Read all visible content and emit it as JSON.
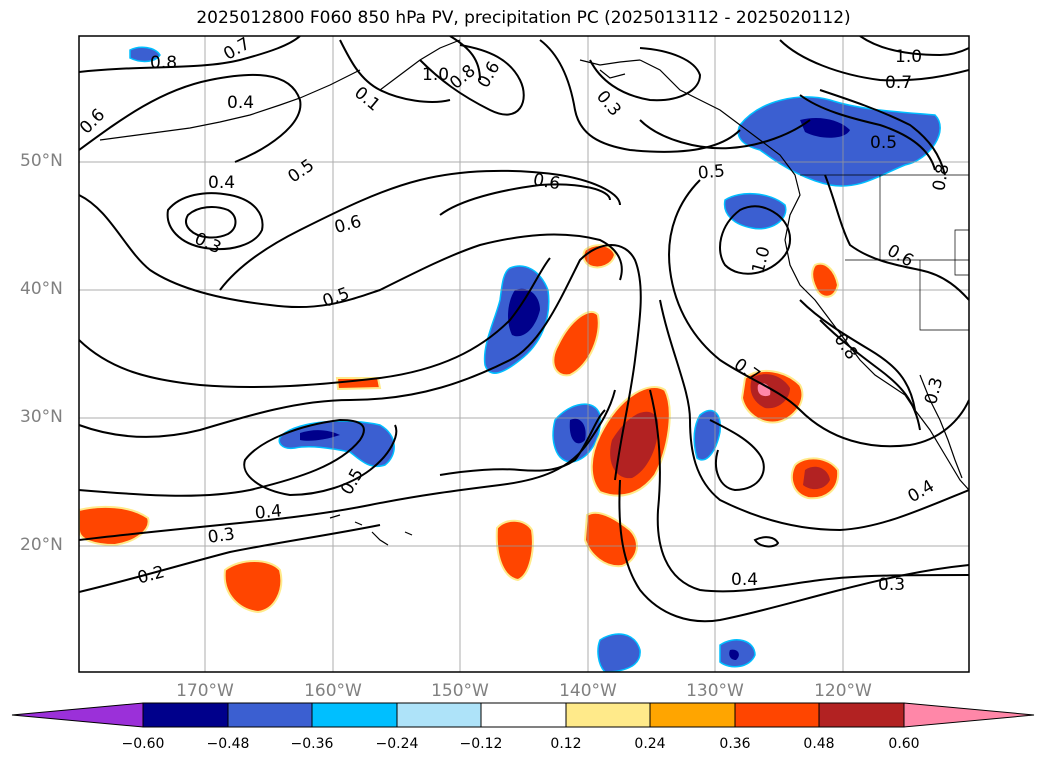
{
  "title": "2025012800 F060 850 hPa PV, precipitation PC (2025013112 - 2025020112)",
  "lat_labels": [
    "50°N",
    "40°N",
    "30°N",
    "20°N"
  ],
  "lon_labels": [
    "170°W",
    "160°W",
    "150°W",
    "140°W",
    "130°W",
    "120°W"
  ],
  "colorbar": {
    "ticks": [
      "−0.60",
      "−0.48",
      "−0.36",
      "−0.24",
      "−0.12",
      "0.12",
      "0.24",
      "0.36",
      "0.48",
      "0.60"
    ],
    "colors": [
      "#9b30d9",
      "#00008b",
      "#3b5fd1",
      "#00bfff",
      "#aee3f9",
      "#ffffff",
      "#ffea8a",
      "#ffa500",
      "#ff4500",
      "#b22222",
      "#ff87a8"
    ]
  },
  "contour_labels": [
    {
      "text": "0.8"
    },
    {
      "text": "0.7"
    },
    {
      "text": "0.6"
    },
    {
      "text": "0.4"
    },
    {
      "text": "0.5"
    },
    {
      "text": "0.4"
    },
    {
      "text": "0.3"
    },
    {
      "text": "0.6"
    },
    {
      "text": "0.5"
    },
    {
      "text": "0.6"
    },
    {
      "text": "0.5"
    },
    {
      "text": "0.3"
    },
    {
      "text": "0.6"
    },
    {
      "text": "0.8"
    },
    {
      "text": "1.0"
    },
    {
      "text": "0.1"
    },
    {
      "text": "1.0"
    },
    {
      "text": "0.7"
    },
    {
      "text": "0.5"
    },
    {
      "text": "0.8"
    },
    {
      "text": "1.0"
    },
    {
      "text": "0.6"
    },
    {
      "text": "0.8"
    },
    {
      "text": "0.7"
    },
    {
      "text": "0.3"
    },
    {
      "text": "0.4"
    },
    {
      "text": "0.5"
    },
    {
      "text": "0.4"
    },
    {
      "text": "0.3"
    },
    {
      "text": "0.2"
    },
    {
      "text": "0.4"
    },
    {
      "text": "0.3"
    }
  ]
}
